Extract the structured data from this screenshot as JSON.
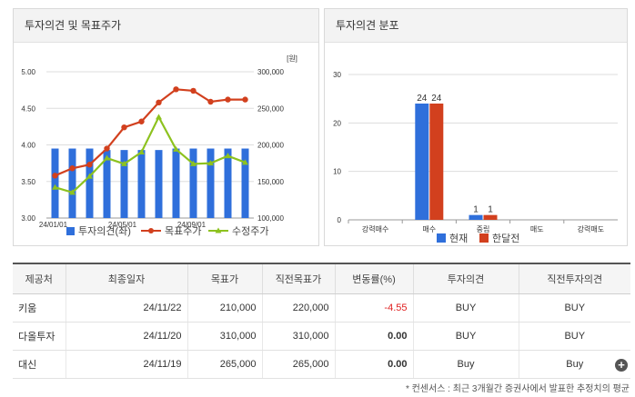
{
  "left_panel": {
    "title": "투자의견 및 목표주가",
    "chart_data": {
      "type": "bar+line",
      "unit_label": "[원]",
      "y_left_ticks": [
        "5.00",
        "4.50",
        "4.00",
        "3.50",
        "3.00"
      ],
      "y_left_range": [
        3.0,
        5.0
      ],
      "y_right_ticks": [
        "300,000",
        "250,000",
        "200,000",
        "150,000",
        "100,000"
      ],
      "y_right_range": [
        100000,
        300000
      ],
      "x_ticks": [
        "24/01/01",
        "24/05/01",
        "24/09/01"
      ],
      "series": [
        {
          "name": "투자의견(좌)",
          "type": "bar",
          "color": "#2f6fdb",
          "values": [
            3.95,
            3.95,
            3.95,
            3.93,
            3.93,
            3.93,
            3.93,
            3.95,
            3.95,
            3.95,
            3.95,
            3.95
          ]
        },
        {
          "name": "목표주가",
          "type": "line",
          "color": "#d2401e",
          "values": [
            158000,
            168000,
            173000,
            195000,
            224000,
            232000,
            258000,
            276000,
            274000,
            259000,
            262000,
            262000
          ]
        },
        {
          "name": "수정주가",
          "type": "line",
          "color": "#8dc21f",
          "values": [
            142000,
            135000,
            157000,
            182000,
            174000,
            190000,
            238000,
            194000,
            174000,
            175000,
            185000,
            176000
          ]
        }
      ],
      "legend": [
        "투자의견(좌)",
        "목표주가",
        "수정주가"
      ]
    }
  },
  "right_panel": {
    "title": "투자의견 분포",
    "chart_data": {
      "type": "bar",
      "categories": [
        "강력매수",
        "매수",
        "중립",
        "매도",
        "강력매도"
      ],
      "y_ticks": [
        "30",
        "20",
        "10",
        "0"
      ],
      "ylim": [
        0,
        30
      ],
      "series": [
        {
          "name": "현재",
          "color": "#2f6fdb",
          "values": [
            0,
            24,
            1,
            0,
            0
          ]
        },
        {
          "name": "한달전",
          "color": "#d2401e",
          "values": [
            0,
            24,
            1,
            0,
            0
          ]
        }
      ],
      "labels": {
        "buy_now": "24",
        "buy_prev": "24",
        "neutral_now": "1",
        "neutral_prev": "1"
      }
    }
  },
  "table": {
    "headers": [
      "제공처",
      "최종일자",
      "목표가",
      "직전목표가",
      "변동률(%)",
      "투자의견",
      "직전투자의견"
    ],
    "rows": [
      {
        "provider": "키움",
        "date": "24/11/22",
        "target": "210,000",
        "prev_target": "220,000",
        "change": "-4.55",
        "opinion": "BUY",
        "prev_opinion": "BUY"
      },
      {
        "provider": "다올투자",
        "date": "24/11/20",
        "target": "310,000",
        "prev_target": "310,000",
        "change": "0.00",
        "opinion": "BUY",
        "prev_opinion": "BUY"
      },
      {
        "provider": "대신",
        "date": "24/11/19",
        "target": "265,000",
        "prev_target": "265,000",
        "change": "0.00",
        "opinion": "Buy",
        "prev_opinion": "Buy"
      }
    ]
  },
  "footnote": "* 컨센서스 : 최근 3개월간 증권사에서 발표한 추정치의 평균",
  "more_button": "+"
}
